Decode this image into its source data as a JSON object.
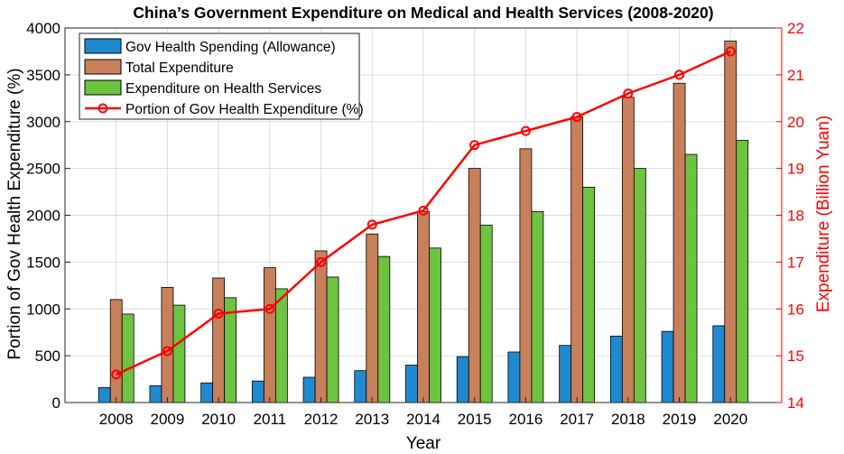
{
  "chart_data": {
    "type": "bar",
    "title": "China’s Government Expenditure on Medical and Health Services (2008-2020)",
    "xlabel": "Year",
    "ylabel_left": "Portion of Gov Health Expenditure (%)",
    "ylabel_right": "Expenditure (Billion Yuan)",
    "categories": [
      "2008",
      "2009",
      "2010",
      "2011",
      "2012",
      "2013",
      "2014",
      "2015",
      "2016",
      "2017",
      "2018",
      "2019",
      "2020"
    ],
    "ylim_left": [
      0,
      4000
    ],
    "yticks_left": [
      0,
      500,
      1000,
      1500,
      2000,
      2500,
      3000,
      3500,
      4000
    ],
    "ylim_right": [
      14,
      22
    ],
    "yticks_right": [
      14,
      15,
      16,
      17,
      18,
      19,
      20,
      21,
      22
    ],
    "grid": true,
    "legend_position": "top-left",
    "series": [
      {
        "name": "Gov Health Spending (Allowance)",
        "kind": "bar",
        "axis": "left",
        "color": "#1f8ad0",
        "values": [
          160,
          180,
          210,
          230,
          270,
          340,
          400,
          490,
          540,
          610,
          710,
          760,
          820
        ]
      },
      {
        "name": "Total Expenditure",
        "kind": "bar",
        "axis": "left",
        "color": "#c8805a",
        "values": [
          1100,
          1230,
          1330,
          1440,
          1620,
          1800,
          2040,
          2500,
          2710,
          3050,
          3260,
          3410,
          3860
        ]
      },
      {
        "name": "Expenditure on Health Services",
        "kind": "bar",
        "axis": "left",
        "color": "#6ec340",
        "values": [
          945,
          1040,
          1120,
          1215,
          1340,
          1560,
          1650,
          1895,
          2040,
          2300,
          2500,
          2650,
          2800
        ]
      },
      {
        "name": "Portion of Gov Health Expenditure (%)",
        "kind": "line",
        "axis": "right",
        "color": "#ff0000",
        "values": [
          14.6,
          15.1,
          15.9,
          16.0,
          17.0,
          17.8,
          18.1,
          19.5,
          19.8,
          20.1,
          20.6,
          21.0,
          21.5
        ]
      }
    ]
  }
}
